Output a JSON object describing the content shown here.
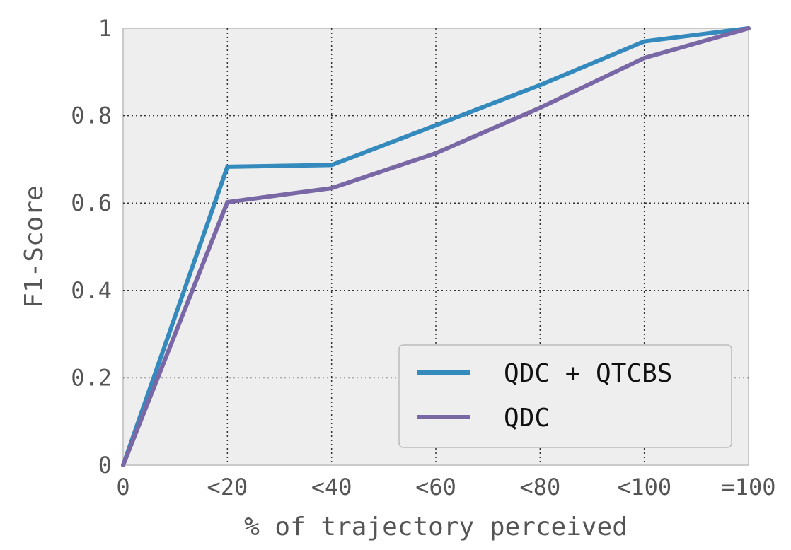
{
  "chart_data": {
    "type": "line",
    "categories": [
      "0",
      "<20",
      "<40",
      "<60",
      "<80",
      "<100",
      "=100"
    ],
    "series": [
      {
        "name": "QDC + QTCBS",
        "color": "#348ABD",
        "values": [
          0.0,
          0.683,
          0.687,
          0.778,
          0.87,
          0.97,
          1.0
        ]
      },
      {
        "name": "QDC",
        "color": "#7A68A6",
        "values": [
          0.0,
          0.602,
          0.634,
          0.714,
          0.818,
          0.932,
          1.0
        ]
      }
    ],
    "xlabel": "% of trajectory perceived",
    "ylabel": "F1-Score",
    "ylim": [
      0,
      1
    ],
    "yticks": [
      "0",
      "0.2",
      "0.4",
      "0.6",
      "0.8",
      "1"
    ],
    "grid": true,
    "legend_position": "lower-right",
    "plot_background": "#EEEEEE",
    "gridline_color": "#333333"
  }
}
